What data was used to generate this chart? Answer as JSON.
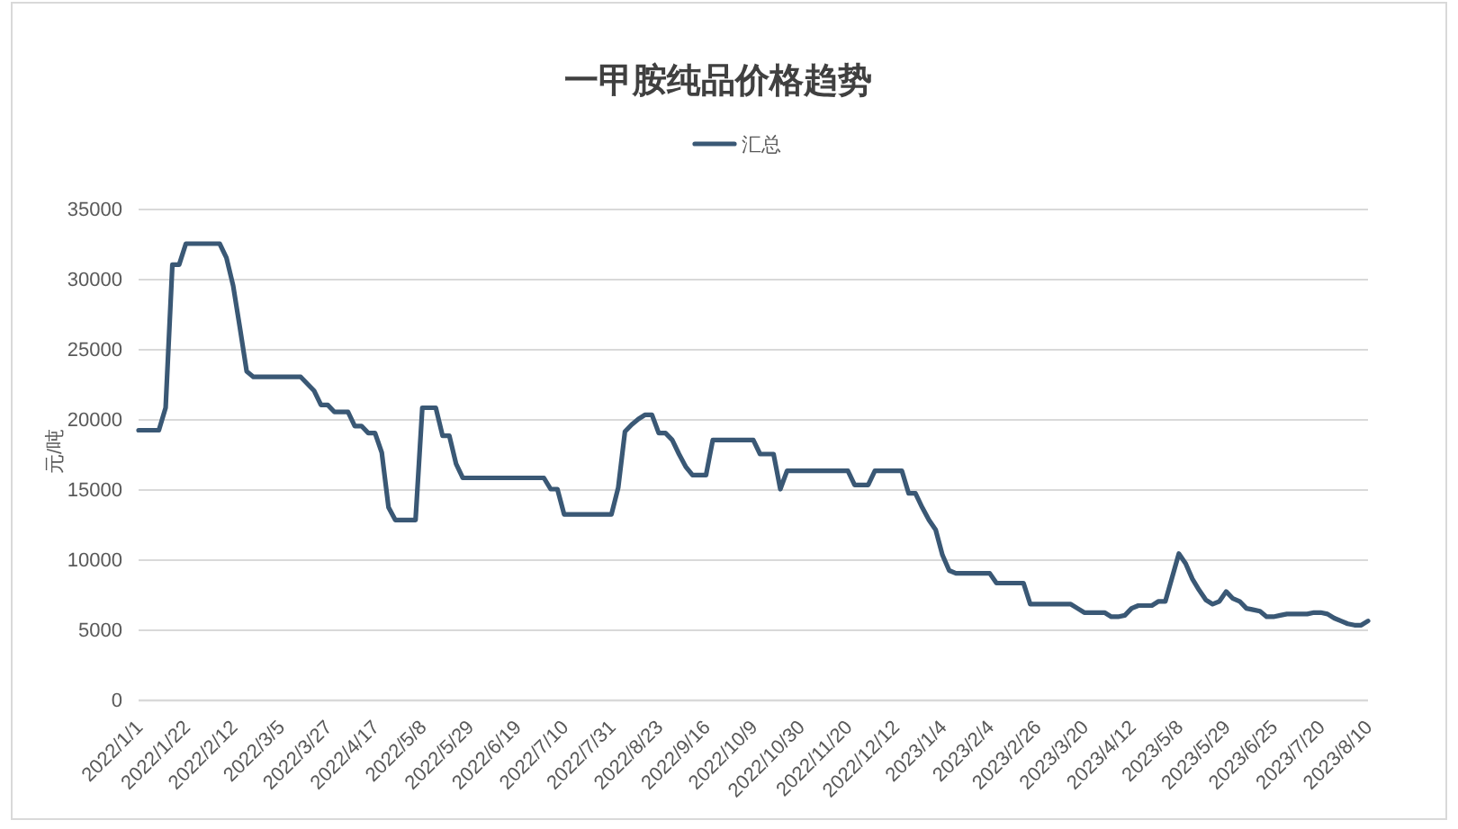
{
  "chart_data": {
    "type": "line",
    "title": "一甲胺纯品价格趋势",
    "ylabel": "元/吨",
    "legend": "top",
    "grid": "y",
    "categories": [
      "2022/1/1",
      null,
      null,
      null,
      null,
      null,
      null,
      "2022/1/22",
      null,
      null,
      null,
      null,
      null,
      null,
      "2022/2/12",
      null,
      null,
      null,
      null,
      null,
      null,
      "2022/3/5",
      null,
      null,
      null,
      null,
      null,
      null,
      "2022/3/27",
      null,
      null,
      null,
      null,
      null,
      null,
      "2022/4/17",
      null,
      null,
      null,
      null,
      null,
      null,
      "2022/5/8",
      null,
      null,
      null,
      null,
      null,
      null,
      "2022/5/29",
      null,
      null,
      null,
      null,
      null,
      null,
      "2022/6/19",
      null,
      null,
      null,
      null,
      null,
      null,
      "2022/7/10",
      null,
      null,
      null,
      null,
      null,
      null,
      "2022/7/31",
      null,
      null,
      null,
      null,
      null,
      null,
      "2022/8/23",
      null,
      null,
      null,
      null,
      null,
      null,
      "2022/9/16",
      null,
      null,
      null,
      null,
      null,
      null,
      "2022/10/9",
      null,
      null,
      null,
      null,
      null,
      null,
      "2022/10/30",
      null,
      null,
      null,
      null,
      null,
      null,
      "2022/11/20",
      null,
      null,
      null,
      null,
      null,
      null,
      "2022/12/12",
      null,
      null,
      null,
      null,
      null,
      null,
      "2023/1/4",
      null,
      null,
      null,
      null,
      null,
      null,
      "2023/2/4",
      null,
      null,
      null,
      null,
      null,
      null,
      "2023/2/26",
      null,
      null,
      null,
      null,
      null,
      null,
      "2023/3/20",
      null,
      null,
      null,
      null,
      null,
      null,
      "2023/4/12",
      null,
      null,
      null,
      null,
      null,
      null,
      "2023/5/8",
      null,
      null,
      null,
      null,
      null,
      null,
      "2023/5/29",
      null,
      null,
      null,
      null,
      null,
      null,
      "2023/6/25",
      null,
      null,
      null,
      null,
      null,
      null,
      "2023/7/20",
      null,
      null,
      null,
      null,
      null,
      null,
      "2023/8/10"
    ],
    "ylim": [
      0,
      35000
    ],
    "yticks": [
      0,
      5000,
      10000,
      15000,
      20000,
      25000,
      30000,
      35000
    ],
    "series": [
      {
        "name": "汇总",
        "color": "#3a5875",
        "values": [
          19200,
          19200,
          19200,
          19200,
          20800,
          31000,
          31000,
          32500,
          32500,
          32500,
          32500,
          32500,
          32500,
          31500,
          29500,
          26500,
          23400,
          23000,
          23000,
          23000,
          23000,
          23000,
          23000,
          23000,
          23000,
          22500,
          22000,
          21000,
          21000,
          20500,
          20500,
          20500,
          19500,
          19500,
          19000,
          19000,
          17600,
          13700,
          12800,
          12800,
          12800,
          12800,
          20800,
          20800,
          20800,
          18800,
          18800,
          16800,
          15800,
          15800,
          15800,
          15800,
          15800,
          15800,
          15800,
          15800,
          15800,
          15800,
          15800,
          15800,
          15800,
          15000,
          15000,
          13200,
          13200,
          13200,
          13200,
          13200,
          13200,
          13200,
          13200,
          15100,
          19100,
          19600,
          20000,
          20300,
          20300,
          19000,
          19000,
          18500,
          17500,
          16600,
          16000,
          16000,
          16000,
          18500,
          18500,
          18500,
          18500,
          18500,
          18500,
          18500,
          17500,
          17500,
          17500,
          15000,
          16300,
          16300,
          16300,
          16300,
          16300,
          16300,
          16300,
          16300,
          16300,
          16300,
          15300,
          15300,
          15300,
          16300,
          16300,
          16300,
          16300,
          16300,
          14700,
          14700,
          13700,
          12800,
          12100,
          10300,
          9200,
          9000,
          9000,
          9000,
          9000,
          9000,
          9000,
          8300,
          8300,
          8300,
          8300,
          8300,
          6800,
          6800,
          6800,
          6800,
          6800,
          6800,
          6800,
          6500,
          6200,
          6200,
          6200,
          6200,
          5900,
          5900,
          6000,
          6500,
          6700,
          6700,
          6700,
          7000,
          7000,
          8700,
          10400,
          9700,
          8600,
          7800,
          7100,
          6800,
          7000,
          7700,
          7200,
          7000,
          6500,
          6400,
          6300,
          5900,
          5900,
          6000,
          6100,
          6100,
          6100,
          6100,
          6200,
          6200,
          6100,
          5800,
          5600,
          5400,
          5300,
          5300,
          5600
        ]
      }
    ]
  }
}
